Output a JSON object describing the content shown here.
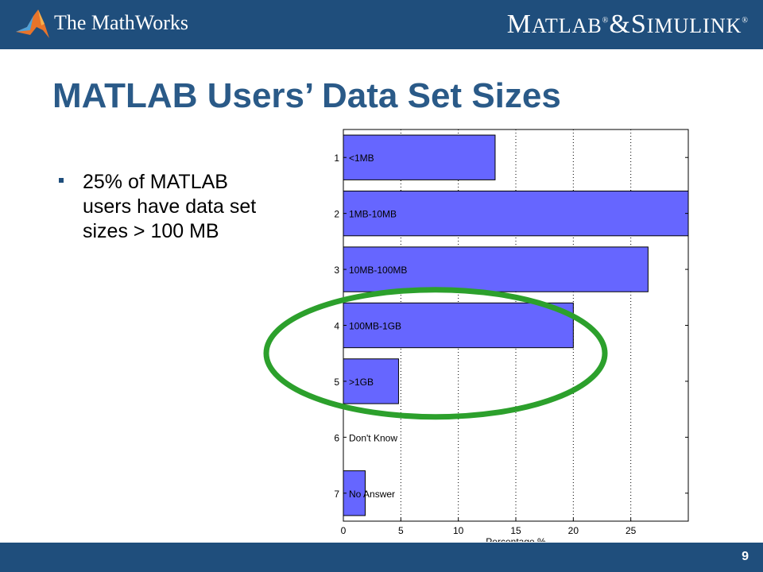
{
  "header": {
    "company_name": "The MathWorks",
    "product_brand": {
      "m": "M",
      "atlab": "ATLAB",
      "reg1": "®",
      "amp": "&",
      "s": "S",
      "imulink": "IMULINK",
      "reg2": "®"
    }
  },
  "slide": {
    "title": "MATLAB Users’ Data Set Sizes",
    "bullets": [
      "25% of MATLAB users have data set sizes > 100 MB"
    ],
    "page_number": "9"
  },
  "colors": {
    "header_bg": "#1f4e7c",
    "title": "#2a5a88",
    "bar_fill": "#6666ff",
    "highlight_ellipse": "#2ca02c"
  },
  "chart_data": {
    "type": "bar",
    "orientation": "horizontal",
    "categories": [
      "1",
      "2",
      "3",
      "4",
      "5",
      "6",
      "7"
    ],
    "bar_labels": [
      "<1MB",
      "1MB-10MB",
      "10MB-100MB",
      "100MB-1GB",
      ">1GB",
      "Don't Know",
      "No Answer"
    ],
    "values": [
      13.2,
      30.0,
      26.5,
      20.0,
      4.8,
      0,
      1.9
    ],
    "xlabel": "Percentage %",
    "ylabel": "",
    "xlim": [
      0,
      30
    ],
    "x_ticks": [
      0,
      5,
      10,
      15,
      20,
      25
    ],
    "grid": "vertical-dotted",
    "annotation": "green ellipse highlighting categories 4 and 5"
  }
}
